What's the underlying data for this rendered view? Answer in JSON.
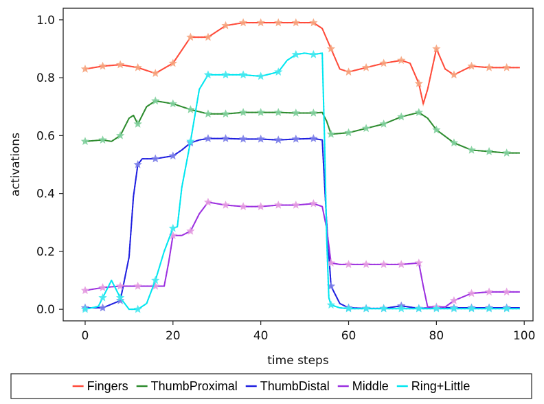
{
  "chart_data": {
    "type": "line",
    "title": "",
    "xlabel": "time steps",
    "ylabel": "activations",
    "xlim": [
      -5,
      102
    ],
    "ylim": [
      -0.04,
      1.04
    ],
    "xticks": [
      0,
      20,
      40,
      60,
      80,
      100
    ],
    "yticks": [
      0.0,
      0.2,
      0.4,
      0.6,
      0.8,
      1.0
    ],
    "xtick_labels": [
      "0",
      "20",
      "40",
      "60",
      "80",
      "100"
    ],
    "ytick_labels": [
      "0.0",
      "0.2",
      "0.4",
      "0.6",
      "0.8",
      "1.0"
    ],
    "grid": false,
    "legend_position": "bottom, outside plot",
    "series": [
      {
        "name": "Fingers",
        "color": "#ff4a3a",
        "marker_color": "#f6a47e",
        "x": [
          0,
          4,
          8,
          12,
          16,
          20,
          24,
          28,
          32,
          36,
          40,
          44,
          48,
          52,
          54,
          56,
          58,
          60,
          64,
          68,
          72,
          74,
          76,
          77,
          78,
          80,
          82,
          84,
          88,
          92,
          96,
          99
        ],
        "y": [
          0.83,
          0.84,
          0.845,
          0.835,
          0.815,
          0.85,
          0.94,
          0.94,
          0.98,
          0.99,
          0.99,
          0.99,
          0.99,
          0.99,
          0.97,
          0.9,
          0.83,
          0.82,
          0.835,
          0.85,
          0.86,
          0.85,
          0.78,
          0.71,
          0.76,
          0.9,
          0.83,
          0.81,
          0.84,
          0.835,
          0.835,
          0.835
        ]
      },
      {
        "name": "ThumbProximal",
        "color": "#2e8b2e",
        "marker_color": "#7fcf9c",
        "x": [
          0,
          4,
          6,
          8,
          10,
          11,
          12,
          14,
          16,
          20,
          24,
          28,
          32,
          36,
          40,
          44,
          48,
          52,
          54,
          55,
          56,
          60,
          64,
          68,
          72,
          76,
          78,
          80,
          84,
          88,
          92,
          96,
          99
        ],
        "y": [
          0.58,
          0.585,
          0.58,
          0.6,
          0.66,
          0.67,
          0.64,
          0.7,
          0.72,
          0.71,
          0.69,
          0.675,
          0.675,
          0.68,
          0.68,
          0.68,
          0.678,
          0.678,
          0.68,
          0.65,
          0.605,
          0.61,
          0.625,
          0.64,
          0.665,
          0.68,
          0.66,
          0.62,
          0.575,
          0.55,
          0.545,
          0.54,
          0.54
        ]
      },
      {
        "name": "ThumbDistal",
        "color": "#1f1fe0",
        "marker_color": "#7b7ee8",
        "x": [
          0,
          4,
          8,
          10,
          11,
          12,
          13,
          16,
          20,
          22,
          24,
          26,
          28,
          32,
          36,
          40,
          44,
          48,
          52,
          54,
          55,
          56,
          58,
          60,
          64,
          68,
          72,
          76,
          80,
          84,
          88,
          92,
          96,
          99
        ],
        "y": [
          0.005,
          0.005,
          0.03,
          0.18,
          0.39,
          0.5,
          0.52,
          0.52,
          0.53,
          0.55,
          0.575,
          0.585,
          0.59,
          0.59,
          0.588,
          0.588,
          0.585,
          0.588,
          0.59,
          0.585,
          0.3,
          0.08,
          0.02,
          0.005,
          0.003,
          0.003,
          0.012,
          0.003,
          0.006,
          0.005,
          0.005,
          0.005,
          0.005,
          0.005
        ]
      },
      {
        "name": "Middle",
        "color": "#9b30e0",
        "marker_color": "#e49be0",
        "x": [
          0,
          4,
          8,
          12,
          16,
          18,
          19,
          20,
          22,
          24,
          26,
          28,
          32,
          36,
          40,
          44,
          48,
          52,
          54,
          55,
          56,
          58,
          60,
          64,
          68,
          72,
          76,
          77,
          78,
          80,
          82,
          84,
          88,
          92,
          96,
          99
        ],
        "y": [
          0.065,
          0.075,
          0.08,
          0.08,
          0.08,
          0.08,
          0.16,
          0.255,
          0.255,
          0.27,
          0.33,
          0.37,
          0.36,
          0.355,
          0.355,
          0.36,
          0.36,
          0.365,
          0.355,
          0.28,
          0.16,
          0.155,
          0.155,
          0.155,
          0.155,
          0.155,
          0.16,
          0.08,
          0.008,
          0.008,
          0.008,
          0.03,
          0.055,
          0.06,
          0.06,
          0.06
        ]
      },
      {
        "name": "Ring+Little",
        "color": "#00e6f0",
        "marker_color": "#45e8ee",
        "x": [
          0,
          3,
          4,
          6,
          8,
          10,
          12,
          14,
          16,
          18,
          20,
          21,
          22,
          24,
          26,
          28,
          32,
          36,
          40,
          44,
          46,
          48,
          50,
          52,
          54,
          54.5,
          55,
          55.5,
          56,
          58,
          60,
          64,
          68,
          72,
          76,
          80,
          84,
          88,
          92,
          96,
          99
        ],
        "y": [
          0.0,
          0.01,
          0.04,
          0.1,
          0.04,
          0.0,
          0.0,
          0.02,
          0.1,
          0.2,
          0.28,
          0.285,
          0.42,
          0.58,
          0.76,
          0.81,
          0.81,
          0.81,
          0.805,
          0.82,
          0.86,
          0.88,
          0.885,
          0.88,
          0.885,
          0.6,
          0.25,
          0.04,
          0.015,
          0.005,
          0.002,
          0.002,
          0.002,
          0.002,
          0.002,
          0.002,
          0.002,
          0.002,
          0.002,
          0.002,
          0.002
        ]
      }
    ]
  }
}
